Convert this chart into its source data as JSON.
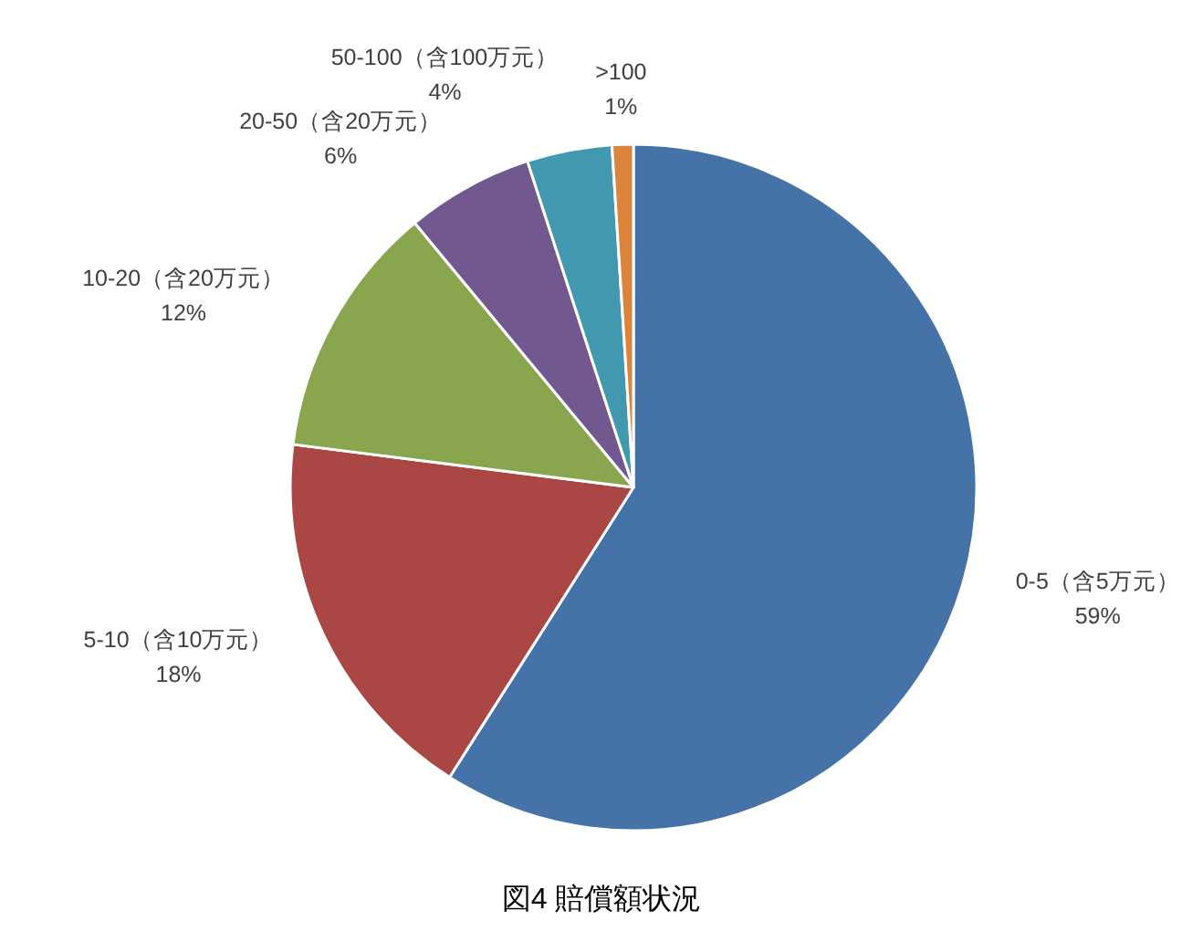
{
  "chart_data": {
    "type": "pie",
    "title": "図4 賠償額状況",
    "categories": [
      "0-5（含5万元）",
      "5-10（含10万元）",
      "10-20（含20万元）",
      "20-50（含20万元）",
      "50-100（含100万元）",
      ">100"
    ],
    "values": [
      59,
      18,
      12,
      6,
      4,
      1
    ],
    "value_labels": [
      "59%",
      "18%",
      "12%",
      "6%",
      "4%",
      "1%"
    ],
    "colors": [
      "#4572a7",
      "#aa4643",
      "#89a54e",
      "#71588f",
      "#4198af",
      "#db843d"
    ]
  }
}
